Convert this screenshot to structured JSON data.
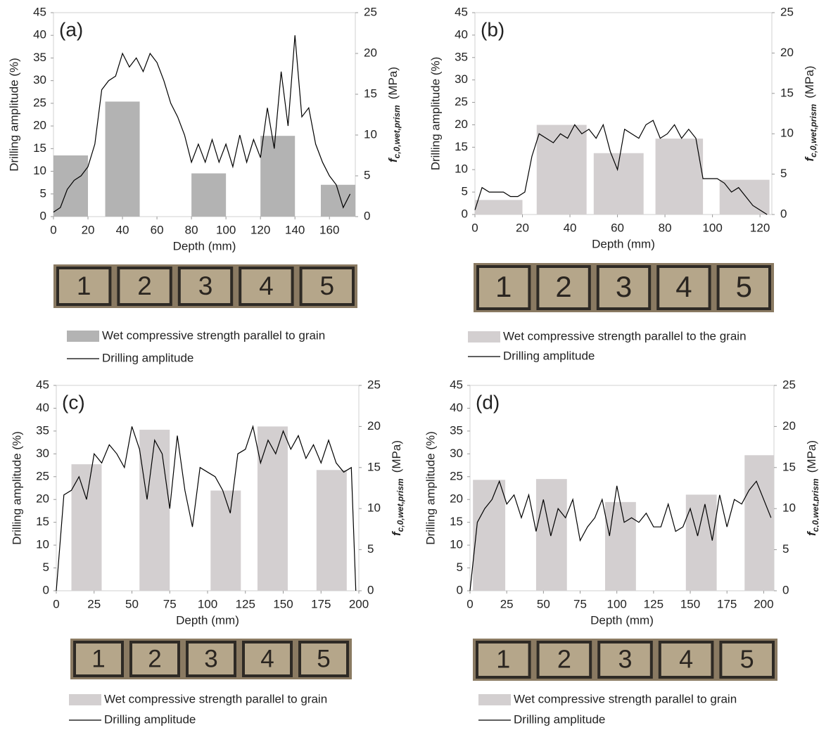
{
  "chart_data": [
    {
      "type": "combo",
      "panel_label": "(a)",
      "xlabel": "Depth (mm)",
      "ylabel": "Drilling amplitude (%)",
      "y2label": {
        "main": "f",
        "sub": "c,0,wet,prism",
        "unit": "(MPa)"
      },
      "xlim": [
        0,
        175
      ],
      "xticks": [
        0,
        20,
        40,
        60,
        80,
        100,
        120,
        140,
        160
      ],
      "ylim": [
        0,
        45
      ],
      "yticks": [
        0,
        5,
        10,
        15,
        20,
        25,
        30,
        35,
        40,
        45
      ],
      "y2lim": [
        0,
        25
      ],
      "y2ticks": [
        0,
        5,
        10,
        15,
        20,
        25
      ],
      "specimen_labels": [
        "1",
        "2",
        "3",
        "4",
        "5"
      ],
      "series": [
        {
          "name": "Wet compressive strength parallel to grain",
          "type": "bar",
          "axis": "y2",
          "color": "#b3b3b3",
          "x_ranges": [
            [
              0,
              20
            ],
            [
              30,
              50
            ],
            [
              80,
              100
            ],
            [
              120,
              140
            ],
            [
              155,
              175
            ]
          ],
          "values": [
            7.5,
            14.1,
            5.3,
            9.9,
            3.9
          ]
        },
        {
          "name": "Drilling amplitude",
          "type": "line",
          "color": "#000000",
          "x": [
            0,
            4,
            8,
            12,
            16,
            20,
            24,
            28,
            32,
            36,
            40,
            44,
            48,
            52,
            56,
            60,
            64,
            68,
            72,
            76,
            80,
            84,
            88,
            92,
            96,
            100,
            104,
            108,
            112,
            116,
            120,
            124,
            128,
            132,
            136,
            140,
            144,
            148,
            152,
            156,
            160,
            164,
            168,
            172
          ],
          "values": [
            1,
            2,
            6,
            8,
            9,
            11,
            16,
            28,
            30,
            31,
            36,
            33,
            35,
            32,
            36,
            34,
            30,
            25,
            22,
            18,
            12,
            16,
            12,
            17,
            12,
            16,
            11,
            18,
            12,
            17,
            13,
            24,
            15,
            32,
            20,
            40,
            22,
            24,
            16,
            12,
            9,
            7,
            2,
            5
          ]
        }
      ]
    },
    {
      "type": "combo",
      "panel_label": "(b)",
      "xlabel": "Depth (mm)",
      "ylabel": "Drilling amplitude (%)",
      "y2label": {
        "main": "f",
        "sub": "c,0,wet,prism",
        "unit": "(MPa)"
      },
      "xlim": [
        0,
        125
      ],
      "xticks": [
        0,
        20,
        40,
        60,
        80,
        100,
        120
      ],
      "ylim": [
        0,
        45
      ],
      "yticks": [
        0,
        5,
        10,
        15,
        20,
        25,
        30,
        35,
        40,
        45
      ],
      "y2lim": [
        0,
        25
      ],
      "y2ticks": [
        0,
        5,
        10,
        15,
        20,
        25
      ],
      "specimen_labels": [
        "1",
        "2",
        "3",
        "4",
        "5"
      ],
      "series": [
        {
          "name": "Wet compressive strength parallel to the grain",
          "type": "bar",
          "axis": "y2",
          "color": "#d3cfd0",
          "x_ranges": [
            [
              0,
              20
            ],
            [
              26,
              47
            ],
            [
              50,
              71
            ],
            [
              76,
              96
            ],
            [
              103,
              124
            ]
          ],
          "values": [
            1.8,
            11.1,
            7.6,
            9.4,
            4.3
          ]
        },
        {
          "name": "Drilling amplitude",
          "type": "line",
          "color": "#000000",
          "x": [
            0,
            3,
            6,
            9,
            12,
            15,
            18,
            21,
            24,
            27,
            30,
            33,
            36,
            39,
            42,
            45,
            48,
            51,
            54,
            57,
            60,
            63,
            66,
            69,
            72,
            75,
            78,
            81,
            84,
            87,
            90,
            93,
            96,
            99,
            102,
            105,
            108,
            111,
            114,
            117,
            120,
            123
          ],
          "values": [
            1,
            6,
            5,
            5,
            5,
            4,
            4,
            5,
            13,
            18,
            17,
            16,
            18,
            17,
            20,
            18,
            19,
            17,
            20,
            14,
            10,
            19,
            18,
            17,
            20,
            21,
            17,
            18,
            20,
            17,
            19,
            17,
            8,
            8,
            8,
            7,
            5,
            6,
            4,
            2,
            1,
            0
          ]
        }
      ]
    },
    {
      "type": "combo",
      "panel_label": "(c)",
      "xlabel": "Depth (mm)",
      "ylabel": "Drilling amplitude (%)",
      "y2label": {
        "main": "f",
        "sub": "c,0,wet,prism",
        "unit": "(MPa)"
      },
      "xlim": [
        0,
        200
      ],
      "xticks": [
        0,
        25,
        50,
        75,
        100,
        125,
        150,
        175,
        200
      ],
      "ylim": [
        0,
        45
      ],
      "yticks": [
        0,
        5,
        10,
        15,
        20,
        25,
        30,
        35,
        40,
        45
      ],
      "y2lim": [
        0,
        25
      ],
      "y2ticks": [
        0,
        5,
        10,
        15,
        20,
        25
      ],
      "specimen_labels": [
        "1",
        "2",
        "3",
        "4",
        "5"
      ],
      "series": [
        {
          "name": "Wet compressive strength parallel to grain",
          "type": "bar",
          "axis": "y2",
          "color": "#d3cfd0",
          "x_ranges": [
            [
              10,
              30
            ],
            [
              55,
              75
            ],
            [
              102,
              122
            ],
            [
              133,
              153
            ],
            [
              172,
              192
            ]
          ],
          "values": [
            15.4,
            19.6,
            12.2,
            20.0,
            14.7
          ]
        },
        {
          "name": "Drilling amplitude",
          "type": "line",
          "color": "#000000",
          "x": [
            0,
            5,
            10,
            15,
            20,
            25,
            30,
            35,
            40,
            45,
            50,
            55,
            60,
            65,
            70,
            75,
            80,
            85,
            90,
            95,
            100,
            105,
            110,
            115,
            120,
            125,
            130,
            135,
            140,
            145,
            150,
            155,
            160,
            165,
            170,
            175,
            180,
            185,
            190,
            195,
            198
          ],
          "values": [
            0,
            21,
            22,
            25,
            20,
            30,
            28,
            32,
            30,
            27,
            36,
            31,
            20,
            33,
            30,
            18,
            34,
            22,
            14,
            27,
            26,
            25,
            22,
            17,
            30,
            31,
            36,
            28,
            33,
            30,
            35,
            31,
            34,
            29,
            32,
            28,
            33,
            28,
            26,
            27,
            0
          ]
        }
      ]
    },
    {
      "type": "combo",
      "panel_label": "(d)",
      "xlabel": "Depth (mm)",
      "ylabel": "Drilling amplitude (%)",
      "y2label": {
        "main": "f",
        "sub": "c,0,wet,prism",
        "unit": "(MPa)"
      },
      "xlim": [
        0,
        207
      ],
      "xticks": [
        0,
        25,
        50,
        75,
        100,
        125,
        150,
        175,
        200
      ],
      "ylim": [
        0,
        45
      ],
      "yticks": [
        0,
        5,
        10,
        15,
        20,
        25,
        30,
        35,
        40,
        45
      ],
      "y2lim": [
        0,
        25
      ],
      "y2ticks": [
        0,
        5,
        10,
        15,
        20,
        25
      ],
      "specimen_labels": [
        "1",
        "2",
        "3",
        "4",
        "5"
      ],
      "series": [
        {
          "name": "Wet compressive strength parallel to grain",
          "type": "bar",
          "axis": "y2",
          "color": "#d3cfd0",
          "x_ranges": [
            [
              2,
              24
            ],
            [
              45,
              66
            ],
            [
              92,
              113
            ],
            [
              147,
              168
            ],
            [
              187,
              207
            ]
          ],
          "values": [
            13.5,
            13.6,
            10.8,
            11.7,
            16.5
          ]
        },
        {
          "name": "Drilling amplitude",
          "type": "line",
          "color": "#000000",
          "x": [
            0,
            5,
            10,
            15,
            20,
            25,
            30,
            35,
            40,
            45,
            50,
            55,
            60,
            65,
            70,
            75,
            80,
            85,
            90,
            95,
            100,
            105,
            110,
            115,
            120,
            125,
            130,
            135,
            140,
            145,
            150,
            155,
            160,
            165,
            170,
            175,
            180,
            185,
            190,
            195,
            200,
            205
          ],
          "values": [
            0,
            15,
            18,
            20,
            24,
            19,
            21,
            16,
            21,
            13,
            20,
            12,
            18,
            16,
            20,
            11,
            14,
            16,
            20,
            12,
            23,
            15,
            16,
            15,
            17,
            14,
            14,
            19,
            13,
            14,
            18,
            12,
            19,
            11,
            21,
            14,
            20,
            19,
            22,
            24,
            20,
            16
          ]
        }
      ]
    }
  ]
}
